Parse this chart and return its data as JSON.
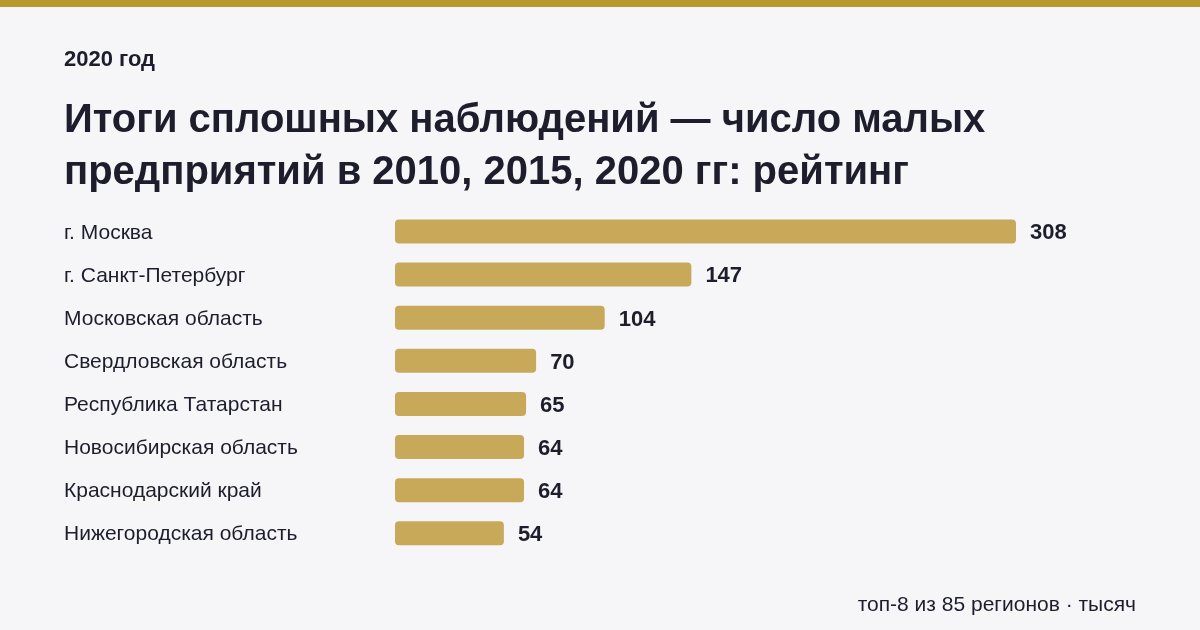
{
  "chart_data": {
    "type": "bar",
    "orientation": "horizontal",
    "subtitle": "2020 год",
    "title": "Итоги сплошных наблюдений — число малых предприятий в 2010, 2015, 2020 гг: рейтинг",
    "categories": [
      "г. Москва",
      "г. Санкт-Петербург",
      "Московская область",
      "Свердловская область",
      "Республика Татарстан",
      "Новосибирская область",
      "Краснодарский край",
      "Нижегородская область"
    ],
    "values": [
      308,
      147,
      104,
      70,
      65,
      64,
      64,
      54
    ],
    "color": "#c8a95a",
    "data_labels": true,
    "annotations": [
      "топ-8 из 85 регионов · тысяч"
    ]
  }
}
